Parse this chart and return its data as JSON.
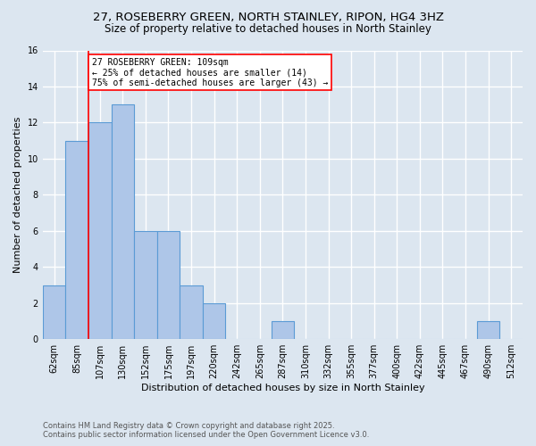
{
  "title1": "27, ROSEBERRY GREEN, NORTH STAINLEY, RIPON, HG4 3HZ",
  "title2": "Size of property relative to detached houses in North Stainley",
  "xlabel": "Distribution of detached houses by size in North Stainley",
  "ylabel": "Number of detached properties",
  "footnote1": "Contains HM Land Registry data © Crown copyright and database right 2025.",
  "footnote2": "Contains public sector information licensed under the Open Government Licence v3.0.",
  "bin_labels": [
    "62sqm",
    "85sqm",
    "107sqm",
    "130sqm",
    "152sqm",
    "175sqm",
    "197sqm",
    "220sqm",
    "242sqm",
    "265sqm",
    "287sqm",
    "310sqm",
    "332sqm",
    "355sqm",
    "377sqm",
    "400sqm",
    "422sqm",
    "445sqm",
    "467sqm",
    "490sqm",
    "512sqm"
  ],
  "bar_values": [
    3,
    11,
    12,
    13,
    6,
    6,
    3,
    2,
    0,
    0,
    1,
    0,
    0,
    0,
    0,
    0,
    0,
    0,
    0,
    1,
    0
  ],
  "bar_color": "#aec6e8",
  "bar_edge_color": "#5b9bd5",
  "vline_color": "red",
  "vline_x_index": 2,
  "annotation_text": "27 ROSEBERRY GREEN: 109sqm\n← 25% of detached houses are smaller (14)\n75% of semi-detached houses are larger (43) →",
  "annotation_box_color": "white",
  "annotation_box_edge_color": "red",
  "ylim": [
    0,
    16
  ],
  "yticks": [
    0,
    2,
    4,
    6,
    8,
    10,
    12,
    14,
    16
  ],
  "background_color": "#dce6f0",
  "plot_background_color": "#dce6f0",
  "grid_color": "white",
  "title_fontsize": 9.5,
  "subtitle_fontsize": 8.5,
  "axis_label_fontsize": 8,
  "tick_fontsize": 7,
  "footnote_fontsize": 6,
  "annotation_fontsize": 7
}
